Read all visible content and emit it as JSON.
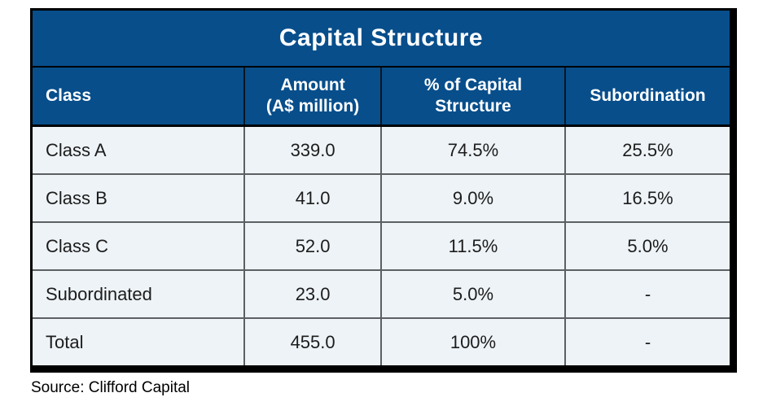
{
  "table": {
    "title": "Capital Structure",
    "columns": {
      "class": "Class",
      "amount": "Amount\n(A$ million)",
      "pct": "% of Capital\nStructure",
      "subordination": "Subordination"
    },
    "rows": [
      {
        "class": "Class A",
        "amount": "339.0",
        "pct": "74.5%",
        "subordination": "25.5%"
      },
      {
        "class": "Class B",
        "amount": "41.0",
        "pct": "9.0%",
        "subordination": "16.5%"
      },
      {
        "class": "Class C",
        "amount": "52.0",
        "pct": "11.5%",
        "subordination": "5.0%"
      },
      {
        "class": "Subordinated",
        "amount": "23.0",
        "pct": "5.0%",
        "subordination": "-"
      },
      {
        "class": "Total",
        "amount": "455.0",
        "pct": "100%",
        "subordination": "-"
      }
    ]
  },
  "source": "Source: Clifford Capital",
  "colors": {
    "header_blue": "#074e8b",
    "row_background": "#eef3f7",
    "outer_border": "#000000",
    "grid_gray": "#5c6063",
    "header_text": "#ffffff",
    "body_text": "#1c1c1c"
  }
}
